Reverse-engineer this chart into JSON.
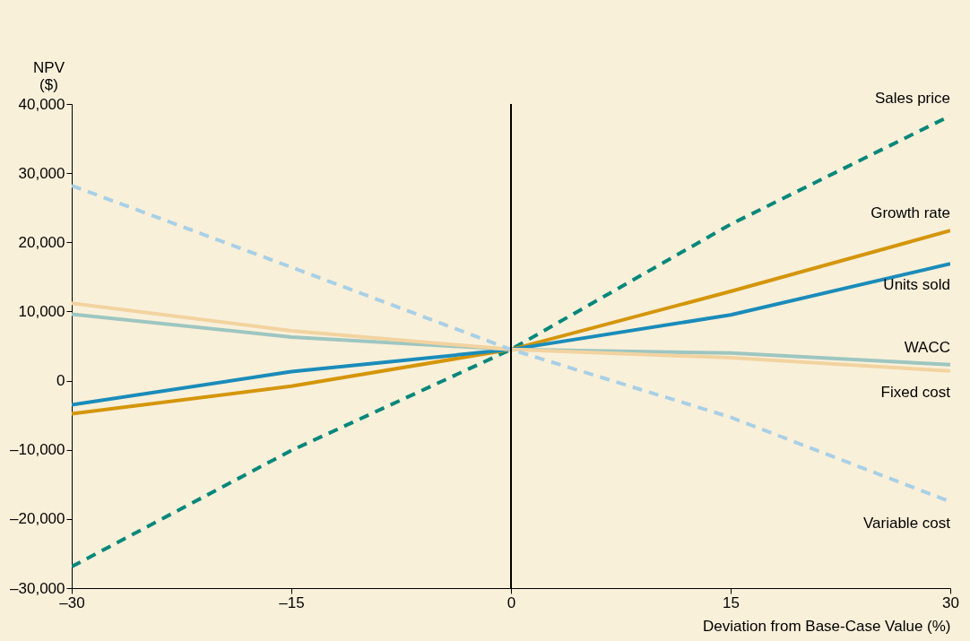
{
  "chart_data": {
    "type": "line",
    "xlabel": "Deviation from Base-Case Value (%)",
    "ylabel": "NPV ($)",
    "x": [
      -30,
      -15,
      0,
      15,
      30
    ],
    "series": [
      {
        "name": "Sales price",
        "color": "#00897b",
        "line_style": "dashed",
        "values": [
          -26900,
          -10100,
          4500,
          22600,
          38300
        ]
      },
      {
        "name": "Growth rate",
        "color": "#d4960a",
        "values": [
          -4800,
          -800,
          4500,
          12900,
          21700
        ]
      },
      {
        "name": "Units sold",
        "color": "#1a8cba",
        "values": [
          -3500,
          1300,
          4500,
          9500,
          16900
        ]
      },
      {
        "name": "WACC",
        "color": "#9dc6c0",
        "values": [
          9600,
          6300,
          4500,
          4000,
          2300
        ]
      },
      {
        "name": "Fixed cost",
        "color": "#f2d3a0",
        "values": [
          11200,
          7200,
          4500,
          3300,
          1400
        ]
      },
      {
        "name": "Variable cost",
        "color": "#a8d0e6",
        "line_style": "dashed",
        "values": [
          28200,
          16400,
          4500,
          -5300,
          -17500
        ]
      }
    ],
    "xlim": [
      -30,
      30
    ],
    "ylim": [
      -30000,
      40000
    ],
    "xticks": [
      {
        "value": -30,
        "label": "–30"
      },
      {
        "value": -15,
        "label": "–15"
      },
      0,
      15,
      30
    ],
    "yticks": [
      {
        "value": -30000,
        "label": "–30,000"
      },
      {
        "value": -20000,
        "label": "–20,000"
      },
      {
        "value": -10000,
        "label": "–10,000"
      },
      0,
      {
        "value": 10000,
        "label": "10,000"
      },
      {
        "value": 20000,
        "label": "20,000"
      },
      {
        "value": 30000,
        "label": "30,000"
      },
      {
        "value": 40000,
        "label": "40,000"
      }
    ],
    "ref_lines": [
      {
        "axis": "x",
        "value": 0,
        "color": "#000000"
      }
    ],
    "grid": false,
    "marker": "none",
    "line_style": "solid"
  }
}
